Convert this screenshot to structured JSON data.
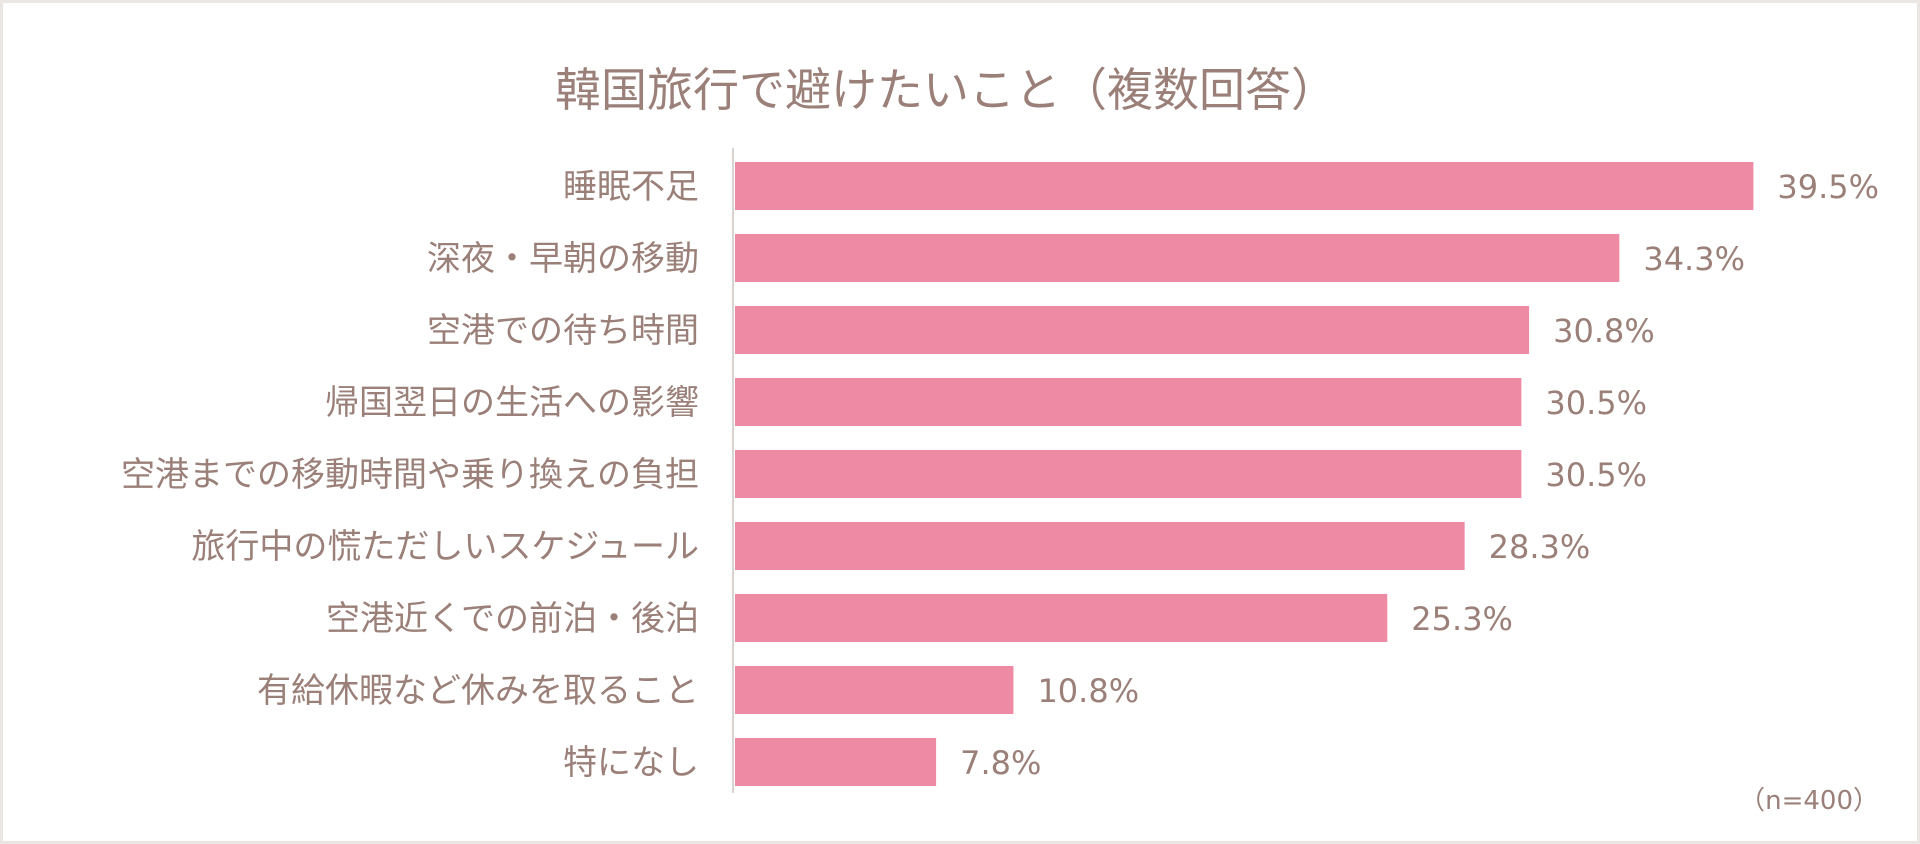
{
  "chart_data": {
    "type": "bar",
    "orientation": "horizontal",
    "title": "韓国旅行で避けたいこと（複数回答）",
    "categories": [
      "睡眠不足",
      "深夜・早朝の移動",
      "空港での待ち時間",
      "帰国翌日の生活への影響",
      "空港までの移動時間や乗り換えの負担",
      "旅行中の慌ただしいスケジュール",
      "空港近くでの前泊・後泊",
      "有給休暇など休みを取ること",
      "特になし"
    ],
    "values": [
      39.5,
      34.3,
      30.8,
      30.5,
      30.5,
      28.3,
      25.3,
      10.8,
      7.8
    ],
    "value_labels": [
      "39.5%",
      "34.3%",
      "30.8%",
      "30.5%",
      "30.5%",
      "28.3%",
      "25.3%",
      "10.8%",
      "7.8%"
    ],
    "xlim": [
      0,
      46
    ],
    "grid": false,
    "legend": "none",
    "note": "（n=400）",
    "colors": {
      "bar": "#ef8aa5",
      "text": "#9a8078",
      "axis": "#d9d4d0",
      "border": "#e9e6e3"
    }
  }
}
